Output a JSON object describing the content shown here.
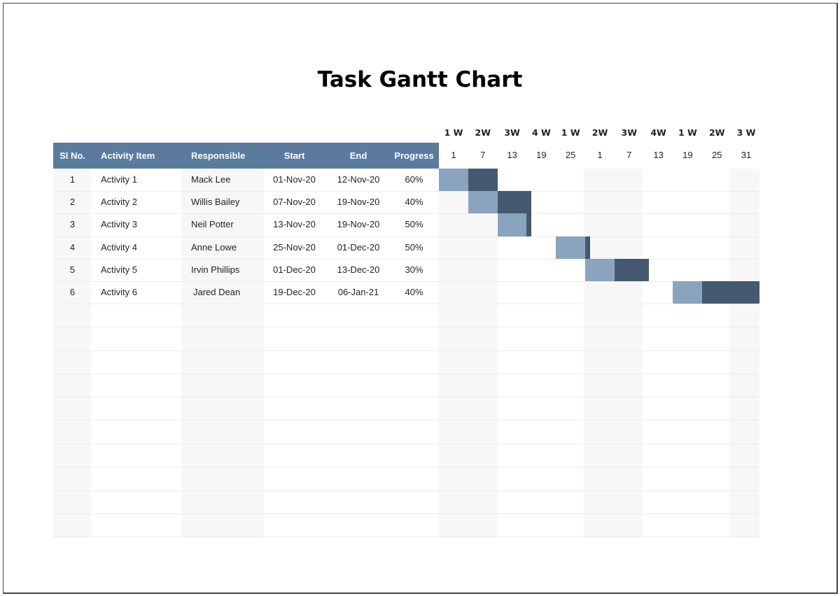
{
  "title": "Task Gantt Chart",
  "colors": {
    "header": "#5b7b9e",
    "progress_done": "#8aa4be",
    "progress_remaining": "#44596f",
    "shade": "#f7f7f7"
  },
  "table": {
    "headers": [
      "Sl No.",
      "Activity Item",
      "Responsible",
      "Start",
      "End",
      "Progress"
    ],
    "rows": [
      {
        "no": "1",
        "activity": "Activity 1",
        "responsible": "Mack Lee",
        "start": "01-Nov-20",
        "end": "12-Nov-20",
        "progress": "60%"
      },
      {
        "no": "2",
        "activity": "Activity 2",
        "responsible": "Willis Bailey",
        "start": "07-Nov-20",
        "end": "19-Nov-20",
        "progress": "40%"
      },
      {
        "no": "3",
        "activity": "Activity 3",
        "responsible": "Neil Potter",
        "start": "13-Nov-20",
        "end": "19-Nov-20",
        "progress": "50%"
      },
      {
        "no": "4",
        "activity": "Activity 4",
        "responsible": "Anne Lowe",
        "start": "25-Nov-20",
        "end": "01-Dec-20",
        "progress": "50%"
      },
      {
        "no": "5",
        "activity": "Activity 5",
        "responsible": "Irvin Phillips",
        "start": "01-Dec-20",
        "end": "13-Dec-20",
        "progress": "30%"
      },
      {
        "no": "6",
        "activity": "Activity 6",
        "responsible": "Jared Dean",
        "start": "19-Dec-20",
        "end": "06-Jan-21",
        "progress": "40%"
      }
    ]
  },
  "timeline": {
    "weeks": [
      "1 W",
      "2W",
      "3W",
      "4 W",
      "1 W",
      "2W",
      "3W",
      "4W",
      "1 W",
      "2W",
      "3 W"
    ],
    "days": [
      "1",
      "7",
      "13",
      "19",
      "25",
      "1",
      "7",
      "13",
      "19",
      "25",
      "31"
    ]
  }
}
